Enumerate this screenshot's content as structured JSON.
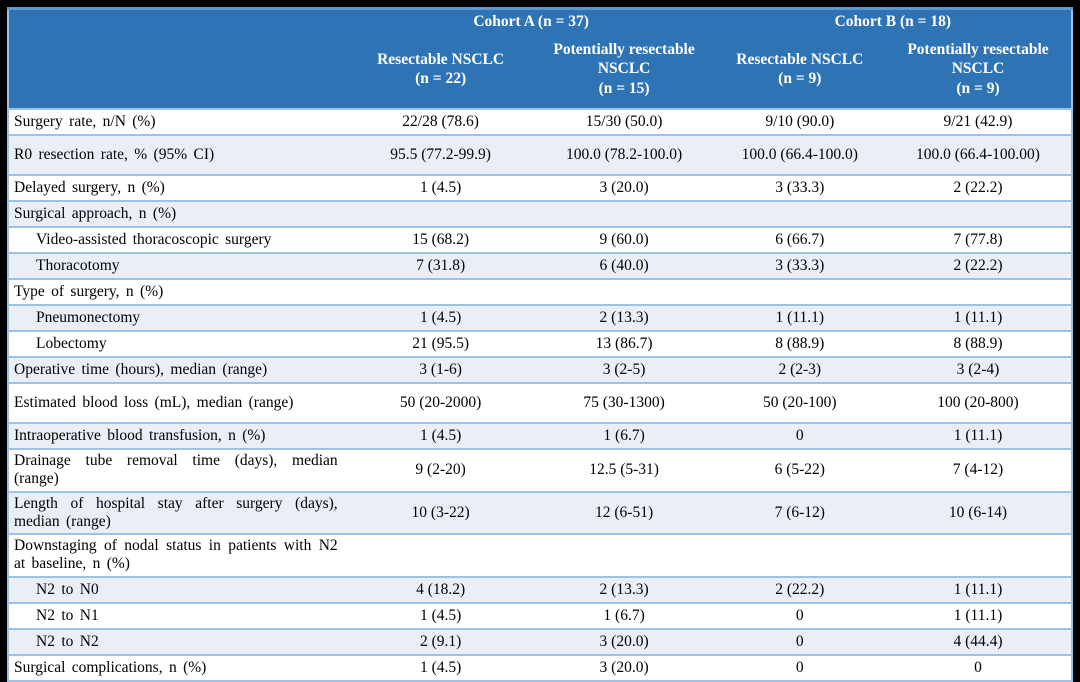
{
  "colors": {
    "header_bg": "#2E74B5",
    "header_top_line": "#5B9BD5",
    "header_text": "#FFFFFF",
    "row_alt_bg": "#EAEFF7",
    "row_separator": "#9CC2E5",
    "body_text": "#000000",
    "page_frame": "#000000"
  },
  "table": {
    "cohort_groups": [
      {
        "label": "Cohort A (n = 37)"
      },
      {
        "label": "Cohort B (n = 18)"
      }
    ],
    "columns": [
      {
        "name": "Resectable NSCLC",
        "n": "(n = 22)"
      },
      {
        "name": "Potentially resectable NSCLC",
        "n": "(n = 15)"
      },
      {
        "name": "Resectable NSCLC",
        "n": "(n = 9)"
      },
      {
        "name": "Potentially resectable NSCLC",
        "n": "(n = 9)"
      }
    ],
    "rows": [
      {
        "label": "Surgery rate, n/N (%)",
        "indent": false,
        "tall": false,
        "values": [
          "22/28 (78.6)",
          "15/30 (50.0)",
          "9/10 (90.0)",
          "9/21 (42.9)"
        ]
      },
      {
        "label": "R0 resection rate, % (95% CI)",
        "indent": false,
        "tall": true,
        "values": [
          "95.5 (77.2-99.9)",
          "100.0 (78.2-100.0)",
          "100.0 (66.4-100.0)",
          "100.0 (66.4-100.00)"
        ]
      },
      {
        "label": "Delayed surgery, n (%)",
        "indent": false,
        "tall": false,
        "values": [
          "1 (4.5)",
          "3 (20.0)",
          "3 (33.3)",
          "2 (22.2)"
        ]
      },
      {
        "label": "Surgical approach, n (%)",
        "indent": false,
        "tall": false,
        "values": [
          "",
          "",
          "",
          ""
        ]
      },
      {
        "label": "Video-assisted thoracoscopic surgery",
        "indent": true,
        "tall": false,
        "values": [
          "15 (68.2)",
          "9 (60.0)",
          "6 (66.7)",
          "7 (77.8)"
        ]
      },
      {
        "label": "Thoracotomy",
        "indent": true,
        "tall": false,
        "values": [
          "7 (31.8)",
          "6 (40.0)",
          "3 (33.3)",
          "2 (22.2)"
        ]
      },
      {
        "label": "Type of surgery, n (%)",
        "indent": false,
        "tall": false,
        "values": [
          "",
          "",
          "",
          ""
        ]
      },
      {
        "label": "Pneumonectomy",
        "indent": true,
        "tall": false,
        "values": [
          "1 (4.5)",
          "2 (13.3)",
          "1 (11.1)",
          "1 (11.1)"
        ]
      },
      {
        "label": "Lobectomy",
        "indent": true,
        "tall": false,
        "values": [
          "21 (95.5)",
          "13 (86.7)",
          "8 (88.9)",
          "8 (88.9)"
        ]
      },
      {
        "label": "Operative time (hours), median (range)",
        "indent": false,
        "tall": false,
        "values": [
          "3 (1-6)",
          "3 (2-5)",
          "2 (2-3)",
          "3 (2-4)"
        ]
      },
      {
        "label": "Estimated blood loss (mL), median (range)",
        "indent": false,
        "tall": true,
        "values": [
          "50 (20-2000)",
          "75 (30-1300)",
          "50 (20-100)",
          "100 (20-800)"
        ]
      },
      {
        "label": "Intraoperative blood transfusion, n (%)",
        "indent": false,
        "tall": false,
        "values": [
          "1 (4.5)",
          "1 (6.7)",
          "0",
          "1 (11.1)"
        ]
      },
      {
        "label": "Drainage tube removal time (days), median (range)",
        "indent": false,
        "tall": false,
        "values": [
          "9 (2-20)",
          "12.5 (5-31)",
          "6 (5-22)",
          "7 (4-12)"
        ]
      },
      {
        "label": "Length of hospital stay after surgery (days), median (range)",
        "indent": false,
        "tall": false,
        "values": [
          "10 (3-22)",
          "12 (6-51)",
          "7 (6-12)",
          "10 (6-14)"
        ]
      },
      {
        "label": "Downstaging of nodal status in patients with N2 at baseline, n (%)",
        "indent": false,
        "tall": false,
        "values": [
          "",
          "",
          "",
          ""
        ]
      },
      {
        "label": "N2 to N0",
        "indent": true,
        "tall": false,
        "values": [
          "4 (18.2)",
          "2 (13.3)",
          "2 (22.2)",
          "1 (11.1)"
        ]
      },
      {
        "label": "N2 to N1",
        "indent": true,
        "tall": false,
        "values": [
          "1 (4.5)",
          "1 (6.7)",
          "0",
          "1 (11.1)"
        ]
      },
      {
        "label": "N2 to N2",
        "indent": true,
        "tall": false,
        "values": [
          "2 (9.1)",
          "3 (20.0)",
          "0",
          "4 (44.4)"
        ]
      },
      {
        "label": "Surgical complications, n (%)",
        "indent": false,
        "tall": false,
        "values": [
          "1 (4.5)",
          "3 (20.0)",
          "0",
          "0"
        ]
      }
    ]
  }
}
